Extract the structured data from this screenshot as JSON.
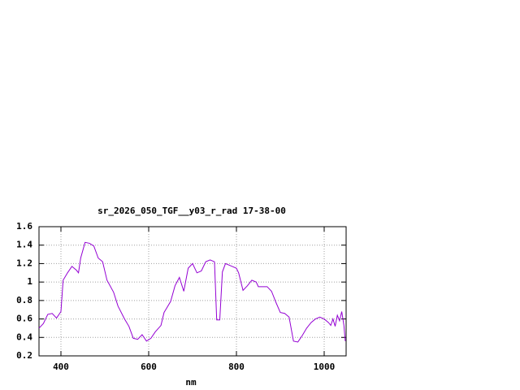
{
  "chart_data": {
    "type": "line",
    "title": "sr_2026_050_TGF__y03_r_rad 17-38-00",
    "x_label": "nm",
    "x": [
      350,
      360,
      370,
      380,
      390,
      400,
      405,
      415,
      425,
      435,
      440,
      445,
      455,
      465,
      475,
      485,
      495,
      505,
      520,
      530,
      545,
      555,
      565,
      575,
      585,
      595,
      605,
      615,
      628,
      635,
      650,
      660,
      670,
      680,
      690,
      700,
      710,
      720,
      730,
      740,
      750,
      755,
      762,
      768,
      775,
      790,
      800,
      805,
      815,
      825,
      835,
      845,
      850,
      870,
      880,
      890,
      900,
      910,
      920,
      930,
      940,
      950,
      960,
      970,
      980,
      990,
      1000,
      1010,
      1015,
      1020,
      1025,
      1030,
      1035,
      1040,
      1045,
      1048
    ],
    "series": [
      {
        "name": null,
        "color": "#9400d3",
        "values": [
          0.5,
          0.55,
          0.65,
          0.66,
          0.61,
          0.68,
          1.02,
          1.1,
          1.17,
          1.13,
          1.1,
          1.26,
          1.43,
          1.42,
          1.39,
          1.26,
          1.22,
          1.02,
          0.89,
          0.74,
          0.6,
          0.52,
          0.39,
          0.38,
          0.43,
          0.36,
          0.39,
          0.46,
          0.53,
          0.67,
          0.79,
          0.96,
          1.05,
          0.9,
          1.15,
          1.2,
          1.1,
          1.12,
          1.22,
          1.24,
          1.22,
          0.59,
          0.59,
          1.11,
          1.2,
          1.17,
          1.15,
          1.1,
          0.91,
          0.96,
          1.02,
          1.0,
          0.95,
          0.95,
          0.9,
          0.78,
          0.67,
          0.66,
          0.62,
          0.36,
          0.35,
          0.42,
          0.5,
          0.56,
          0.6,
          0.62,
          0.6,
          0.56,
          0.53,
          0.6,
          0.52,
          0.64,
          0.58,
          0.68,
          0.53,
          0.36
        ]
      }
    ],
    "xlim": [
      350,
      1050
    ],
    "xticks": [
      400,
      600,
      800,
      1000
    ],
    "ylim": [
      0.2,
      1.6
    ],
    "yticks": [
      0.2,
      0.4,
      0.6,
      0.8,
      1,
      1.2,
      1.4,
      1.6
    ],
    "grid": true
  }
}
